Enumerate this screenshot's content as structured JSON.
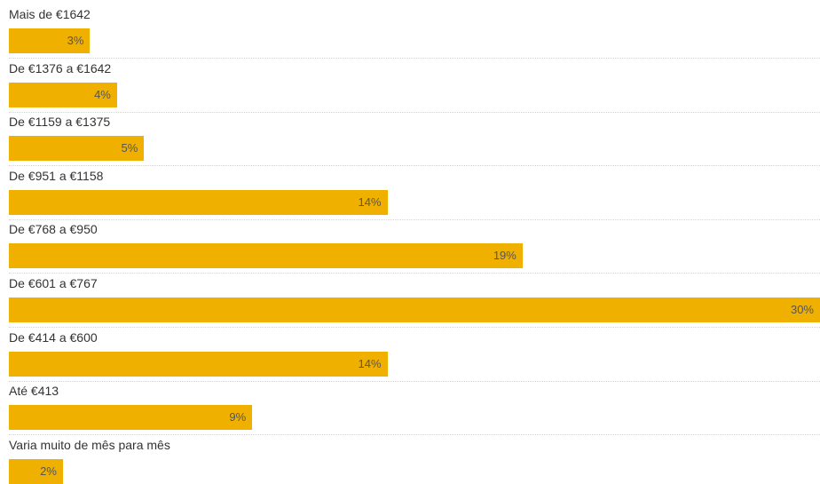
{
  "chart_data": {
    "type": "bar",
    "orientation": "horizontal",
    "title": "",
    "xlabel": "",
    "ylabel": "",
    "categories": [
      "Mais de €1642",
      "De €1376 a €1642",
      "De €1159 a €1375",
      "De €951 a €1158",
      "De €768 a €950",
      "De €601 a €767",
      "De €414 a €600",
      "Até €413",
      "Varia muito de mês para mês"
    ],
    "values": [
      3,
      4,
      5,
      14,
      19,
      30,
      14,
      9,
      2
    ],
    "value_labels": [
      "3%",
      "4%",
      "5%",
      "14%",
      "19%",
      "30%",
      "14%",
      "9%",
      "2%"
    ],
    "unit": "%",
    "xlim": [
      0,
      30
    ],
    "grid": false,
    "legend": "none",
    "bar_color": "#f0b000"
  }
}
